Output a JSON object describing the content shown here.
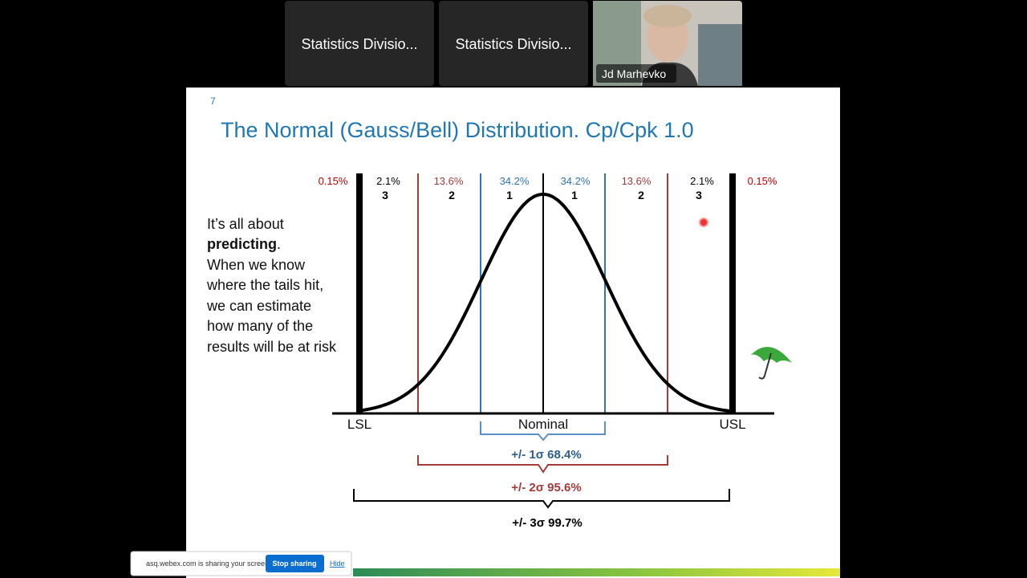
{
  "meeting": {
    "participants": [
      {
        "name": "Statistics Divisio..."
      },
      {
        "name": "Statistics Divisio..."
      },
      {
        "name": "Jd Marhevko"
      }
    ]
  },
  "slide": {
    "number": "7",
    "title": "The Normal (Gauss/Bell) Distribution. Cp/Cpk 1.0",
    "body": [
      "It’s all about",
      "predicting",
      ".",
      "When we know",
      "where the tails hit,",
      "we can estimate",
      "how many of the",
      "results will be at risk"
    ],
    "regions": [
      {
        "percent": "0.15%"
      },
      {
        "percent": "2.1%",
        "sigma": "3"
      },
      {
        "percent": "13.6%",
        "sigma": "2"
      },
      {
        "percent": "34.2%",
        "sigma": "1"
      },
      {
        "percent": "34.2%",
        "sigma": "1"
      },
      {
        "percent": "13.6%",
        "sigma": "2"
      },
      {
        "percent": "2.1%",
        "sigma": "3"
      },
      {
        "percent": "0.15%"
      }
    ],
    "limits": {
      "lower": "LSL",
      "nominal": "Nominal",
      "upper": "USL"
    },
    "ranges": [
      "+/- 1σ 68.4%",
      "+/- 2σ 95.6%",
      "+/- 3σ 99.7%"
    ]
  },
  "share_bar": {
    "message": "asq.webex.com is sharing your screen.",
    "stop_button": "Stop sharing",
    "hide_link": "Hide"
  }
}
